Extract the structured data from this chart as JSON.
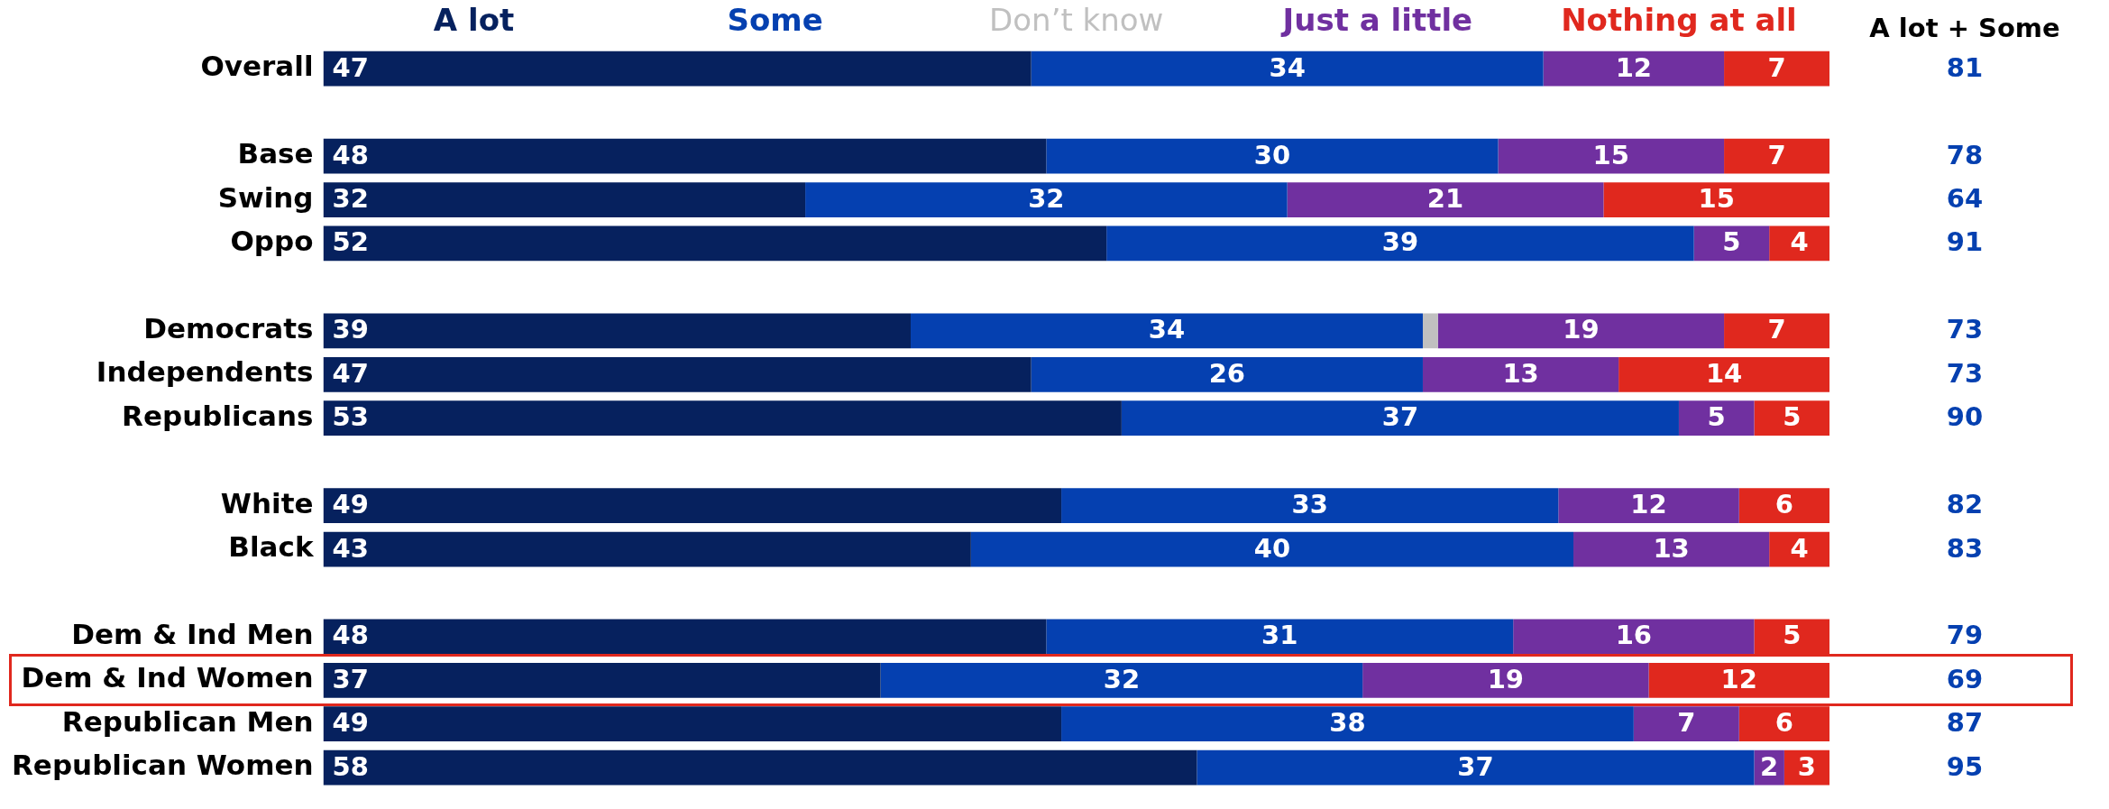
{
  "chart_data": {
    "type": "bar",
    "orientation": "horizontal",
    "stacked": true,
    "legend": "top",
    "tick_labels": "y",
    "grid": false,
    "xlim": [
      0,
      100
    ],
    "categories": [
      "Overall",
      null,
      "Base",
      "Swing",
      "Oppo",
      null,
      "Democrats",
      "Independents",
      "Republicans",
      null,
      "White",
      "Black",
      null,
      "Dem & Ind Men",
      "Dem & Ind Women",
      "Republican Men",
      "Republican Women"
    ],
    "series": [
      {
        "name": "A lot",
        "color": "#06215e",
        "values": [
          47,
          null,
          48,
          32,
          52,
          null,
          39,
          47,
          53,
          null,
          49,
          43,
          null,
          48,
          37,
          49,
          58
        ],
        "value_labels": [
          "47",
          null,
          "48",
          "32",
          "52",
          null,
          "39",
          "47",
          "53",
          null,
          "49",
          "43",
          null,
          "48",
          "37",
          "49",
          "58"
        ]
      },
      {
        "name": "Some",
        "color": "#0540b0",
        "values": [
          34,
          null,
          30,
          32,
          39,
          null,
          34,
          26,
          37,
          null,
          33,
          40,
          null,
          31,
          32,
          38,
          37
        ],
        "value_labels": [
          "34",
          null,
          "30",
          "32",
          "39",
          null,
          "34",
          "26",
          "37",
          null,
          "33",
          "40",
          null,
          "31",
          "32",
          "38",
          "37"
        ]
      },
      {
        "name": "Don’t know",
        "color": "#c0c0c0",
        "values": [
          null,
          null,
          null,
          null,
          null,
          null,
          1,
          null,
          null,
          null,
          null,
          null,
          null,
          null,
          null,
          null,
          null
        ],
        "value_labels": [
          null,
          null,
          null,
          null,
          null,
          null,
          null,
          null,
          null,
          null,
          null,
          null,
          null,
          null,
          null,
          null,
          null
        ]
      },
      {
        "name": "Just a little",
        "color": "#7030a0",
        "values": [
          12,
          null,
          15,
          21,
          5,
          null,
          19,
          13,
          5,
          null,
          12,
          13,
          null,
          16,
          19,
          7,
          2
        ],
        "value_labels": [
          "12",
          null,
          "15",
          "21",
          "5",
          null,
          "19",
          "13",
          "5",
          null,
          "12",
          "13",
          null,
          "16",
          "19",
          "7",
          "2"
        ]
      },
      {
        "name": "Nothing at all",
        "color": "#e0281e",
        "values": [
          7,
          null,
          7,
          15,
          4,
          null,
          7,
          14,
          5,
          null,
          6,
          4,
          null,
          5,
          12,
          6,
          3
        ],
        "value_labels": [
          "7",
          null,
          "7",
          "15",
          "4",
          null,
          "7",
          "14",
          "5",
          null,
          "6",
          "4",
          null,
          "5",
          "12",
          "6",
          "3"
        ]
      }
    ],
    "annotations": [
      "A lot + Some",
      "81",
      "78",
      "64",
      "91",
      "73",
      "73",
      "90",
      "82",
      "83",
      "79",
      "69",
      "87",
      "95"
    ]
  }
}
